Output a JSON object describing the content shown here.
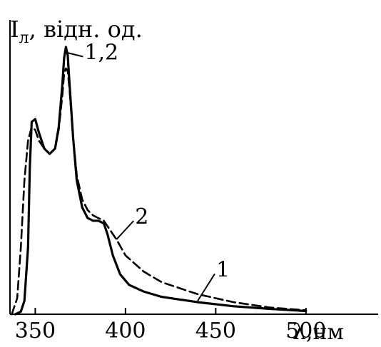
{
  "chart_data": {
    "type": "line",
    "title": "",
    "ylabel": "I",
    "ylabel_sub": "л",
    "ylabel_rest": ", відн. од.",
    "xlabel": "λ,нм",
    "xlim": [
      336,
      540
    ],
    "ylim": [
      0,
      1.0
    ],
    "grid": false,
    "x_ticks": [
      350,
      400,
      450,
      500
    ],
    "x_tick_labels": [
      "350",
      "400",
      "450",
      "500"
    ],
    "series": [
      {
        "name": "1",
        "style": "solid",
        "x": [
          339,
          342,
          344,
          346,
          347,
          348,
          350,
          352,
          355,
          358,
          361,
          363,
          365,
          366,
          367,
          368,
          369,
          371,
          373,
          376,
          379,
          382,
          385,
          388,
          390,
          393,
          397,
          402,
          410,
          420,
          440,
          460,
          480,
          500
        ],
        "y": [
          0.0,
          0.01,
          0.05,
          0.25,
          0.55,
          0.72,
          0.73,
          0.68,
          0.62,
          0.6,
          0.62,
          0.7,
          0.86,
          0.96,
          1.0,
          0.97,
          0.86,
          0.66,
          0.5,
          0.4,
          0.36,
          0.35,
          0.35,
          0.34,
          0.3,
          0.22,
          0.15,
          0.11,
          0.085,
          0.065,
          0.045,
          0.03,
          0.02,
          0.012
        ]
      },
      {
        "name": "2",
        "style": "dashed",
        "x": [
          337,
          340,
          342,
          344,
          346,
          348,
          350,
          352,
          355,
          358,
          361,
          363,
          365,
          366,
          367,
          368,
          369,
          371,
          373,
          376,
          379,
          382,
          385,
          388,
          390,
          395,
          400,
          410,
          420,
          440,
          460,
          480,
          500
        ],
        "y": [
          0.0,
          0.06,
          0.25,
          0.5,
          0.65,
          0.7,
          0.69,
          0.65,
          0.62,
          0.6,
          0.62,
          0.69,
          0.82,
          0.9,
          0.92,
          0.91,
          0.84,
          0.66,
          0.52,
          0.43,
          0.39,
          0.37,
          0.36,
          0.35,
          0.33,
          0.28,
          0.22,
          0.16,
          0.12,
          0.075,
          0.045,
          0.025,
          0.015
        ]
      }
    ],
    "annotations": [
      {
        "text": "1,2",
        "series": "both",
        "x": 367,
        "y": 0.98
      },
      {
        "text": "2",
        "series": "2",
        "x": 395,
        "y": 0.28
      },
      {
        "text": "1",
        "series": "1",
        "x": 440,
        "y": 0.05
      }
    ]
  }
}
